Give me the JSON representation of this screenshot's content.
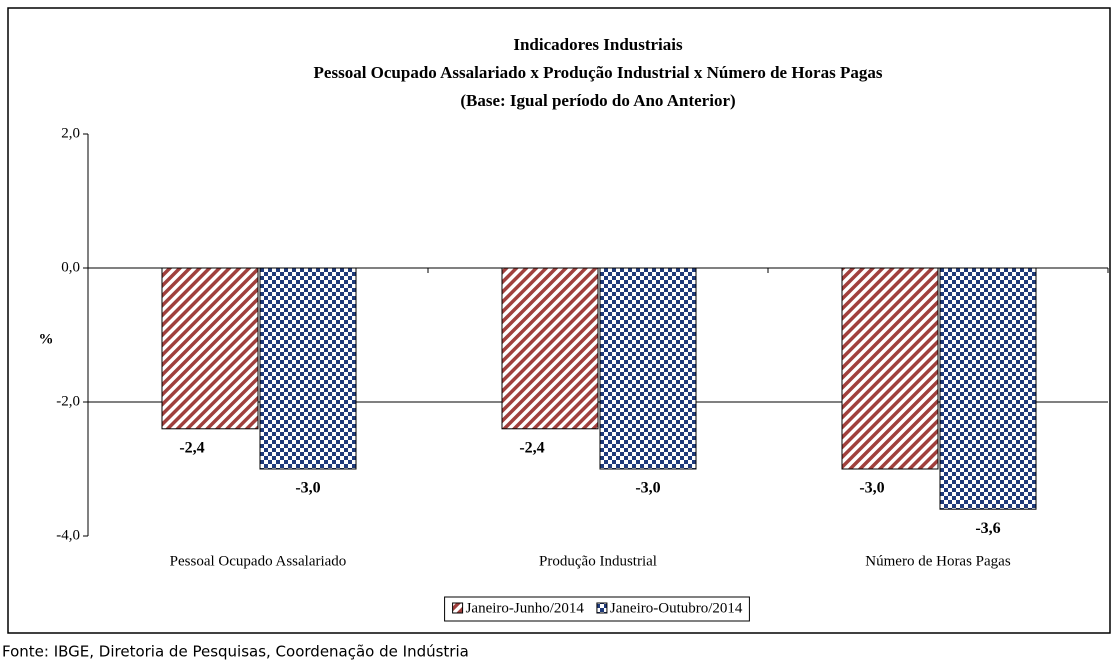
{
  "chart_data": {
    "type": "bar",
    "title": [
      "Indicadores Industriais",
      "Pessoal Ocupado  Assalariado x Produção Industrial x Número de Horas Pagas",
      "(Base: Igual período do Ano Anterior)"
    ],
    "y_label": "%",
    "categories": [
      "Pessoal Ocupado Assalariado",
      "Produção Industrial",
      "Número de Horas Pagas"
    ],
    "series": [
      {
        "name": "Janeiro-Junho/2014",
        "color": "#a0403d",
        "pattern": "diagonal",
        "values": [
          -2.4,
          -2.4,
          -3.0
        ],
        "value_labels": [
          "-2,4",
          "-2,4",
          "-3,0"
        ]
      },
      {
        "name": "Janeiro-Outubro/2014",
        "color": "#1f3a7a",
        "pattern": "checker",
        "values": [
          -3.0,
          -3.0,
          -3.6
        ],
        "value_labels": [
          "-3,0",
          "-3,0",
          "-3,6"
        ]
      }
    ],
    "ylim": [
      -4,
      2
    ],
    "yticks": [
      {
        "value": 2,
        "label": "2,0"
      },
      {
        "value": 0,
        "label": "0,0"
      },
      {
        "value": -2,
        "label": "-2,0"
      },
      {
        "value": -4,
        "label": "-4,0"
      }
    ],
    "grid": true,
    "legend": "bottom",
    "source": "Fonte: IBGE, Diretoria de Pesquisas, Coordenação de Indústria"
  }
}
